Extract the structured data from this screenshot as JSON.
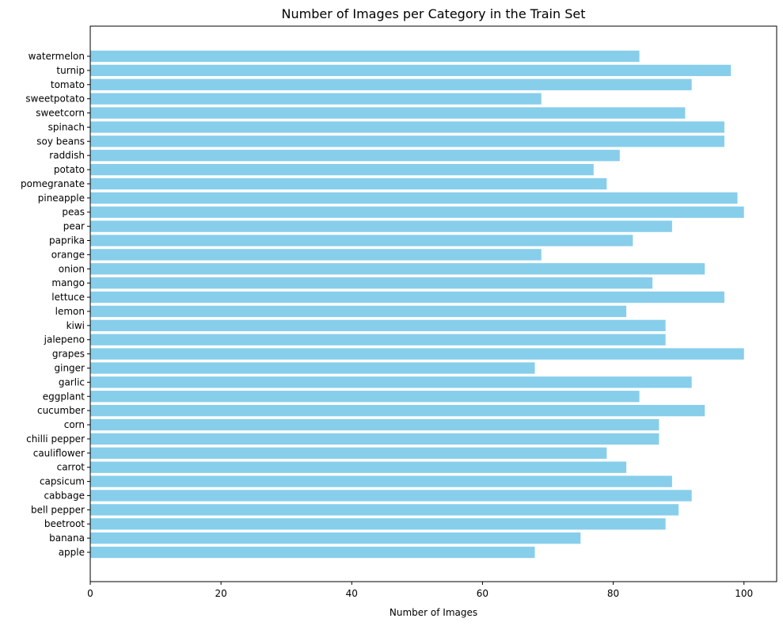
{
  "chart_data": {
    "type": "bar",
    "orientation": "horizontal",
    "title": "Number of Images per Category in the Train Set",
    "xlabel": "Number of Images",
    "ylabel": "",
    "xlim": [
      0,
      105
    ],
    "xticks": [
      0,
      20,
      40,
      60,
      80,
      100
    ],
    "grid": false,
    "bar_color": "#87ceeb",
    "categories": [
      "apple",
      "banana",
      "beetroot",
      "bell pepper",
      "cabbage",
      "capsicum",
      "carrot",
      "cauliflower",
      "chilli pepper",
      "corn",
      "cucumber",
      "eggplant",
      "garlic",
      "ginger",
      "grapes",
      "jalepeno",
      "kiwi",
      "lemon",
      "lettuce",
      "mango",
      "onion",
      "orange",
      "paprika",
      "pear",
      "peas",
      "pineapple",
      "pomegranate",
      "potato",
      "raddish",
      "soy beans",
      "spinach",
      "sweetcorn",
      "sweetpotato",
      "tomato",
      "turnip",
      "watermelon"
    ],
    "values": [
      68,
      75,
      88,
      90,
      92,
      89,
      82,
      79,
      87,
      87,
      94,
      84,
      92,
      68,
      100,
      88,
      88,
      82,
      97,
      86,
      94,
      69,
      83,
      89,
      100,
      99,
      79,
      77,
      81,
      97,
      97,
      91,
      69,
      92,
      98,
      84
    ]
  }
}
